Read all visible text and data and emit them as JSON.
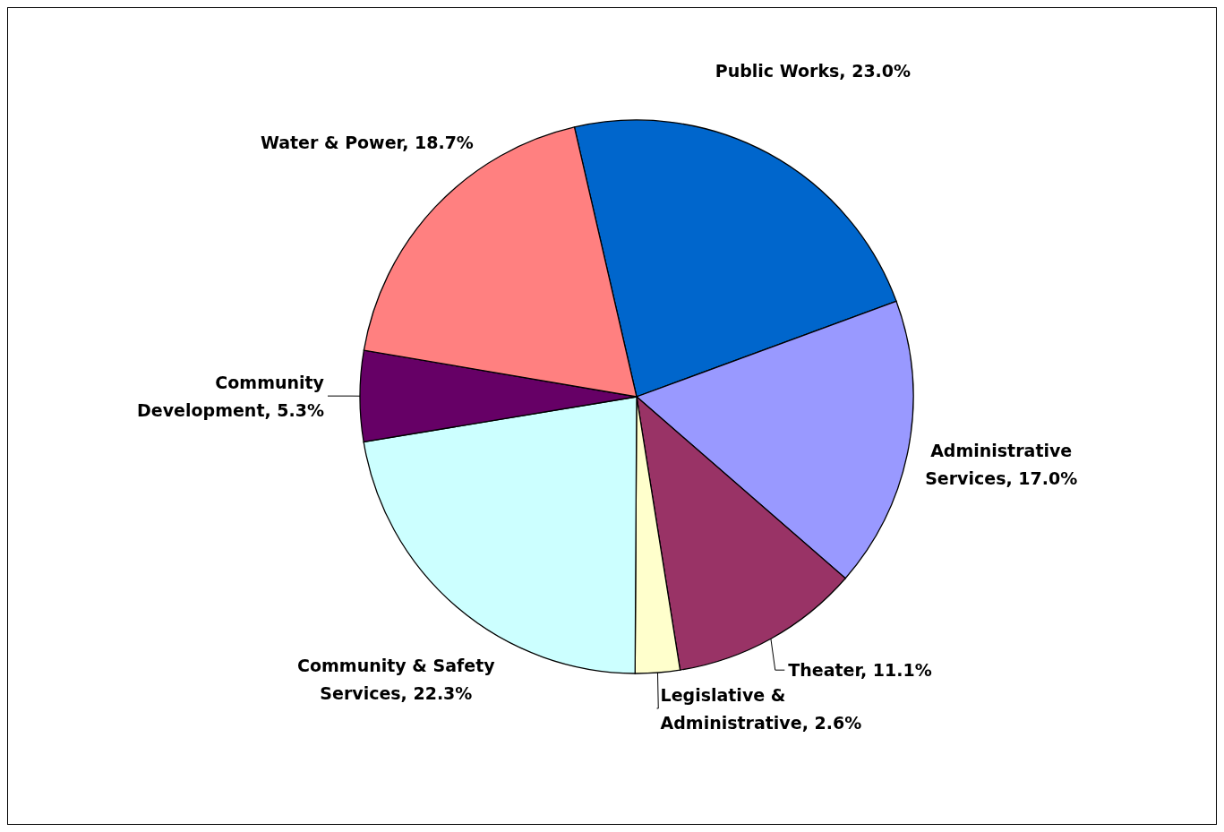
{
  "chart_data": {
    "type": "pie",
    "categories": [
      "Public Works",
      "Administrative Services",
      "Theater",
      "Legislative & Administrative",
      "Community & Safety Services",
      "Community Development",
      "Water & Power"
    ],
    "values": [
      23.0,
      17.0,
      11.1,
      2.6,
      22.3,
      5.3,
      18.7
    ],
    "value_labels": [
      "23.0%",
      "17.0%",
      "11.1%",
      "2.6%",
      "22.3%",
      "5.3%",
      "18.7%"
    ],
    "colors": [
      "#0066cc",
      "#9999ff",
      "#993366",
      "#ffffcc",
      "#ccffff",
      "#660066",
      "#ff8080"
    ],
    "legend": false
  }
}
